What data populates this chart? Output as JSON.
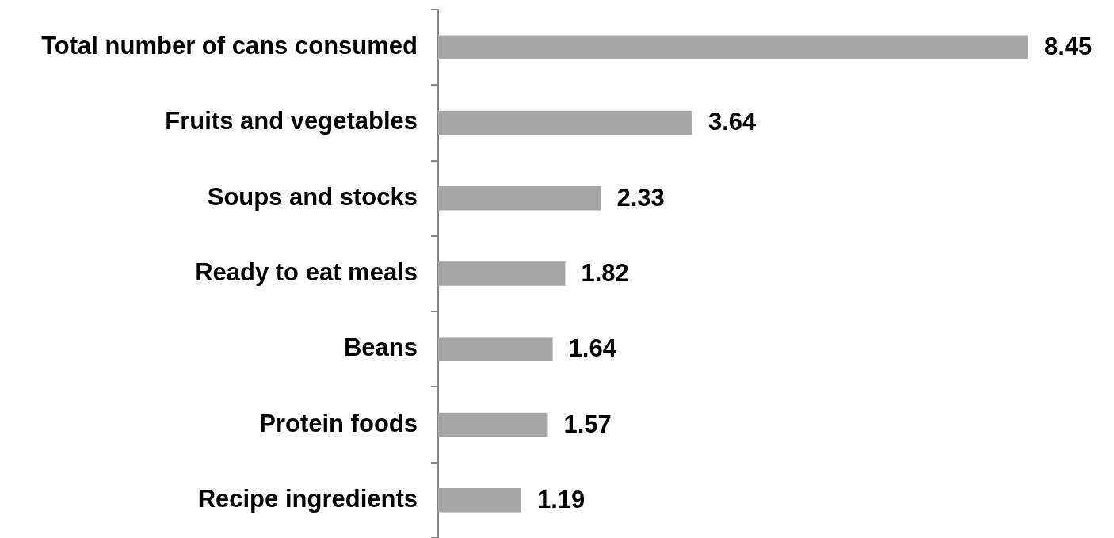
{
  "chart_data": {
    "type": "bar",
    "orientation": "horizontal",
    "categories": [
      "Total number of cans consumed",
      "Fruits and vegetables",
      "Soups and stocks",
      "Ready to eat meals",
      "Beans",
      "Protein foods",
      "Recipe ingredients"
    ],
    "values": [
      8.45,
      3.64,
      2.33,
      1.82,
      1.64,
      1.57,
      1.19
    ],
    "color": "#a6a6a6",
    "data_labels": true
  }
}
